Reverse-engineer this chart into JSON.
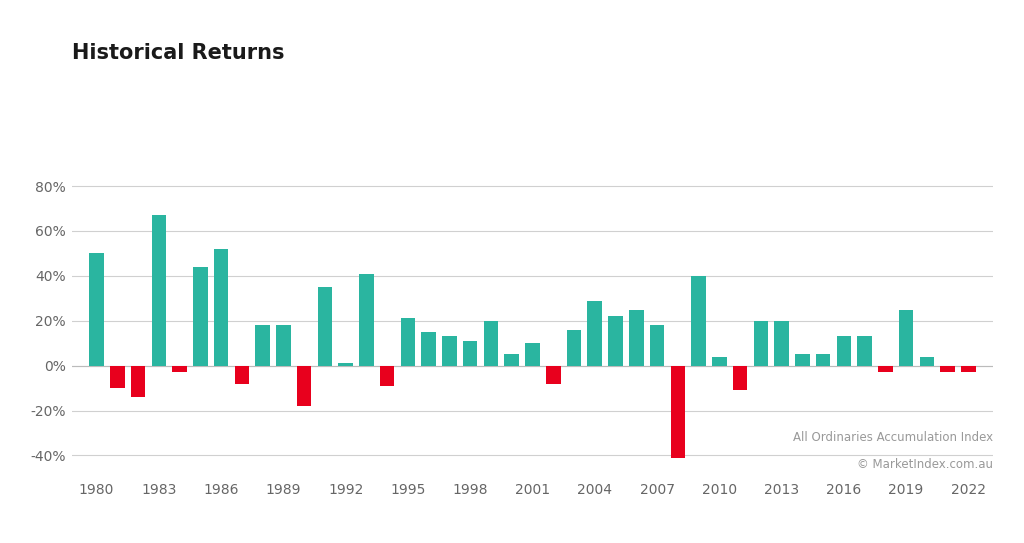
{
  "title": "Historical Returns",
  "subtitle1": "All Ordinaries Accumulation Index",
  "subtitle2": "© MarketIndex.com.au",
  "years": [
    1980,
    1981,
    1982,
    1983,
    1984,
    1985,
    1986,
    1987,
    1988,
    1989,
    1990,
    1991,
    1992,
    1993,
    1994,
    1995,
    1996,
    1997,
    1998,
    1999,
    2000,
    2001,
    2002,
    2003,
    2004,
    2005,
    2006,
    2007,
    2008,
    2009,
    2010,
    2011,
    2012,
    2013,
    2014,
    2015,
    2016,
    2017,
    2018,
    2019,
    2020,
    2021,
    2022
  ],
  "values": [
    50,
    -10,
    -14,
    67,
    -3,
    44,
    52,
    -8,
    18,
    18,
    -18,
    35,
    1,
    41,
    -9,
    21,
    15,
    13,
    11,
    20,
    5,
    10,
    -8,
    16,
    29,
    22,
    25,
    18,
    -41,
    40,
    4,
    -11,
    20,
    20,
    5,
    5,
    13,
    13,
    -3,
    25,
    4,
    -3,
    -3
  ],
  "positive_color": "#2ab5a0",
  "negative_color": "#e8001d",
  "background_color": "#ffffff",
  "grid_color": "#d0d0d0",
  "ylim": [
    -50,
    100
  ],
  "yticks": [
    -40,
    -20,
    0,
    20,
    40,
    60,
    80
  ],
  "xtick_labels": [
    1980,
    1983,
    1986,
    1989,
    1992,
    1995,
    1998,
    2001,
    2004,
    2007,
    2010,
    2013,
    2016,
    2019,
    2022
  ],
  "title_fontsize": 15,
  "annotation_fontsize": 8.5,
  "tick_fontsize": 10,
  "bar_width": 0.7,
  "xlim_left": 1978.8,
  "xlim_right": 2023.2
}
